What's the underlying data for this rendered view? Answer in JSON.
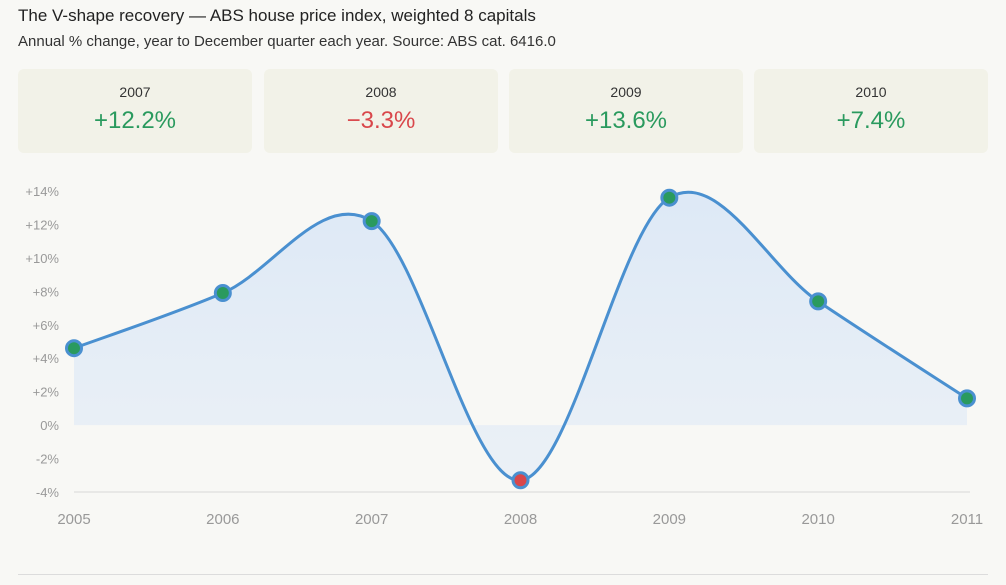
{
  "header": {
    "title": "The V-shape recovery — ABS house price index, weighted 8 capitals",
    "subtitle": "Annual % change, year to December quarter each year. Source: ABS cat. 6416.0"
  },
  "cards": [
    {
      "year": "2007",
      "value": "+12.2%",
      "sign": "pos"
    },
    {
      "year": "2008",
      "value": "−3.3%",
      "sign": "neg"
    },
    {
      "year": "2009",
      "value": "+13.6%",
      "sign": "pos"
    },
    {
      "year": "2010",
      "value": "+7.4%",
      "sign": "pos"
    }
  ],
  "colors": {
    "line": "#4a90d0",
    "area": "#dce8f6",
    "point_positive": "#2a9a5e",
    "point_negative": "#d9474b",
    "text_positive": "#2a9a5e",
    "text_negative": "#d9474b"
  },
  "chart_data": {
    "type": "line",
    "title": "",
    "xlabel": "",
    "ylabel": "",
    "x": [
      "2005",
      "2006",
      "2007",
      "2008",
      "2009",
      "2010",
      "2011"
    ],
    "series": [
      {
        "values": [
          4.6,
          7.9,
          12.2,
          -3.3,
          13.6,
          7.4,
          1.6
        ]
      }
    ],
    "ylim": [
      -4,
      14
    ],
    "y_ticks": [
      -4,
      -2,
      0,
      2,
      4,
      6,
      8,
      10,
      12,
      14
    ],
    "y_tick_labels": [
      "-4%",
      "-2%",
      "0%",
      "+2%",
      "+4%",
      "+6%",
      "+8%",
      "+10%",
      "+12%",
      "+14%"
    ],
    "smooth": true,
    "area_fill": true,
    "grid": false,
    "legend": "none"
  }
}
